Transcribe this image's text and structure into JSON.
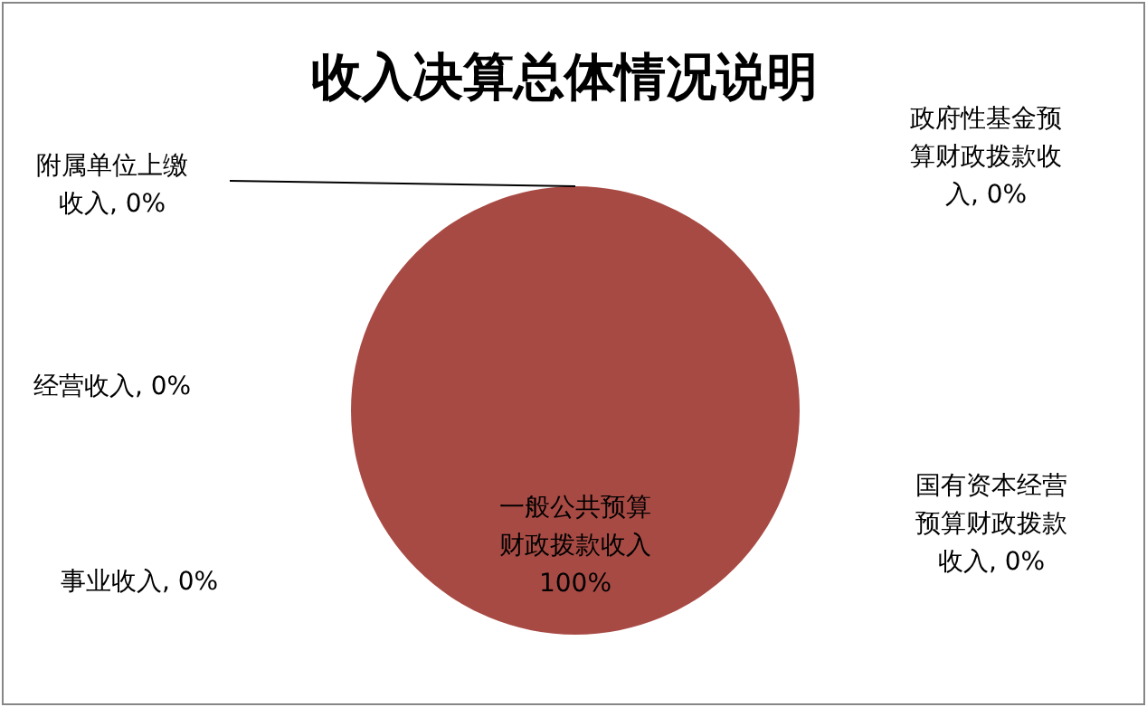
{
  "chart_data": {
    "type": "pie",
    "title": "收入决算总体情况说明",
    "categories": [
      "一般公共预算财政拨款收入",
      "政府性基金预算财政拨款收入",
      "国有资本经营预算财政拨款收入",
      "事业收入",
      "经营收入",
      "附属单位上缴收入"
    ],
    "values": [
      100,
      0,
      0,
      0,
      0,
      0
    ],
    "colors": [
      "#a84a44",
      "#4f81bd",
      "#9bbb59",
      "#8064a2",
      "#4bacc6",
      "#f79646"
    ],
    "value_labels": [
      "100%",
      ", 0%",
      ", 0%",
      ", 0%",
      ", 0%",
      ", 0%"
    ]
  }
}
